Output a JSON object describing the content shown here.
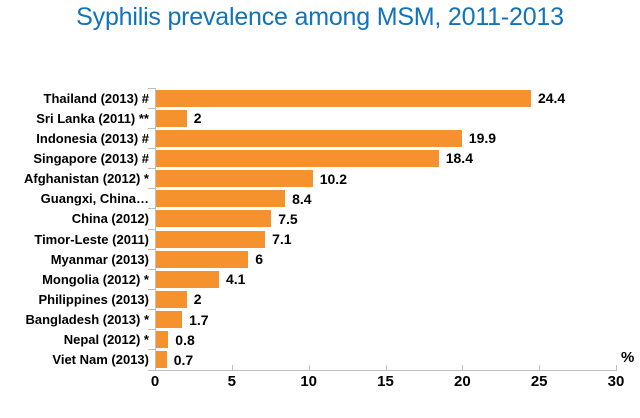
{
  "title": "Syphilis prevalence among MSM, 2011-2013",
  "chart_data": {
    "type": "bar",
    "orientation": "horizontal",
    "title": "Syphilis prevalence among MSM, 2011-2013",
    "categories": [
      "Thailand (2013) #",
      "Sri Lanka (2011) **",
      "Indonesia (2013) #",
      "Singapore (2013) #",
      "Afghanistan (2012) *",
      "Guangxi, China…",
      "China (2012)",
      "Timor-Leste (2011)",
      "Myanmar (2013)",
      "Mongolia (2012) *",
      "Philippines (2013)",
      "Bangladesh (2013) *",
      "Nepal (2012) *",
      "Viet Nam (2013)"
    ],
    "values": [
      24.4,
      2,
      19.9,
      18.4,
      10.2,
      8.4,
      7.5,
      7.1,
      6,
      4.1,
      2,
      1.7,
      0.8,
      0.7
    ],
    "value_labels": [
      "24.4",
      "2",
      "19.9",
      "18.4",
      "10.2",
      "8.4",
      "7.5",
      "7.1",
      "6",
      "4.1",
      "2",
      "1.7",
      "0.8",
      "0.7"
    ],
    "xlabel": "%",
    "xlim": [
      0,
      30
    ],
    "x_ticks": [
      "0",
      "5",
      "10",
      "15",
      "20",
      "25",
      "30"
    ],
    "grid": false,
    "legend": false,
    "data_labels": true,
    "colors": {
      "bar": "#F5922D",
      "title": "#1173BC",
      "axis_line": "#BFBFBF",
      "label_text": "#000000",
      "background": "#FFFFFF"
    }
  }
}
